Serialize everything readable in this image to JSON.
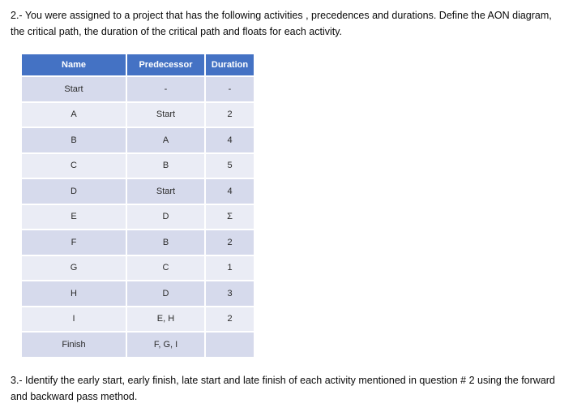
{
  "questions": {
    "q2": "2.- You were assigned to a project that has the following activities , precedences and durations. Define the AON diagram, the critical path, the duration of the critical path and floats for each activity.",
    "q3": "3.- Identify the early start, early finish, late start and late finish of each activity mentioned in question # 2 using the forward and backward pass method."
  },
  "table": {
    "headers": [
      "Name",
      "Predecessor",
      "Duration"
    ],
    "rows": [
      {
        "name": "Start",
        "predecessor": "-",
        "duration": "-"
      },
      {
        "name": "A",
        "predecessor": "Start",
        "duration": "2"
      },
      {
        "name": "B",
        "predecessor": "A",
        "duration": "4"
      },
      {
        "name": "C",
        "predecessor": "B",
        "duration": "5"
      },
      {
        "name": "D",
        "predecessor": "Start",
        "duration": "4"
      },
      {
        "name": "E",
        "predecessor": "D",
        "duration": "Σ"
      },
      {
        "name": "F",
        "predecessor": "B",
        "duration": "2"
      },
      {
        "name": "G",
        "predecessor": "C",
        "duration": "1"
      },
      {
        "name": "H",
        "predecessor": "D",
        "duration": "3"
      },
      {
        "name": "I",
        "predecessor": "E, H",
        "duration": "2"
      },
      {
        "name": "Finish",
        "predecessor": "F, G, I",
        "duration": ""
      }
    ]
  },
  "colors": {
    "header_bg": "#4472C4",
    "header_text": "#FFFFFF",
    "row_band_dark": "#D6DAEC",
    "row_band_light": "#EAECF5"
  }
}
